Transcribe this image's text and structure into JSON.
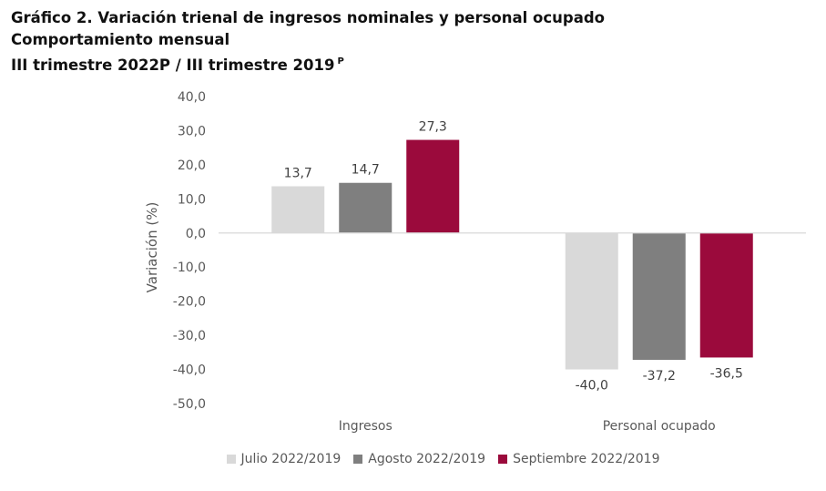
{
  "title": {
    "line1": "Gráfico 2. Variación trienal de ingresos nominales y personal ocupado",
    "line2": "Comportamiento mensual",
    "line3": "III trimestre 2022P / III trimestre 2019",
    "line3_sup": "P"
  },
  "chart_data": {
    "type": "bar",
    "ylabel": "Variación (%)",
    "xlabel": "",
    "ylim": [
      -50,
      40
    ],
    "yticks": [
      40,
      30,
      20,
      10,
      0,
      -10,
      -20,
      -30,
      -40,
      -50
    ],
    "ytick_labels": [
      "40,0",
      "30,0",
      "20,0",
      "10,0",
      "0,0",
      "-10,0",
      "-20,0",
      "-30,0",
      "-40,0",
      "-50,0"
    ],
    "categories": [
      "Ingresos",
      "Personal ocupado"
    ],
    "series": [
      {
        "name": "Julio 2022/2019",
        "color": "#d9d9d9",
        "values": [
          13.7,
          -40.0
        ],
        "labels": [
          "13,7",
          "-40,0"
        ]
      },
      {
        "name": "Agosto 2022/2019",
        "color": "#7f7f7f",
        "values": [
          14.7,
          -37.2
        ],
        "labels": [
          "14,7",
          "-37,2"
        ]
      },
      {
        "name": "Septiembre 2022/2019",
        "color": "#9b0a3c",
        "values": [
          27.3,
          -36.5
        ],
        "labels": [
          "27,3",
          "-36,5"
        ]
      }
    ],
    "legend_position": "bottom",
    "grid": false
  }
}
